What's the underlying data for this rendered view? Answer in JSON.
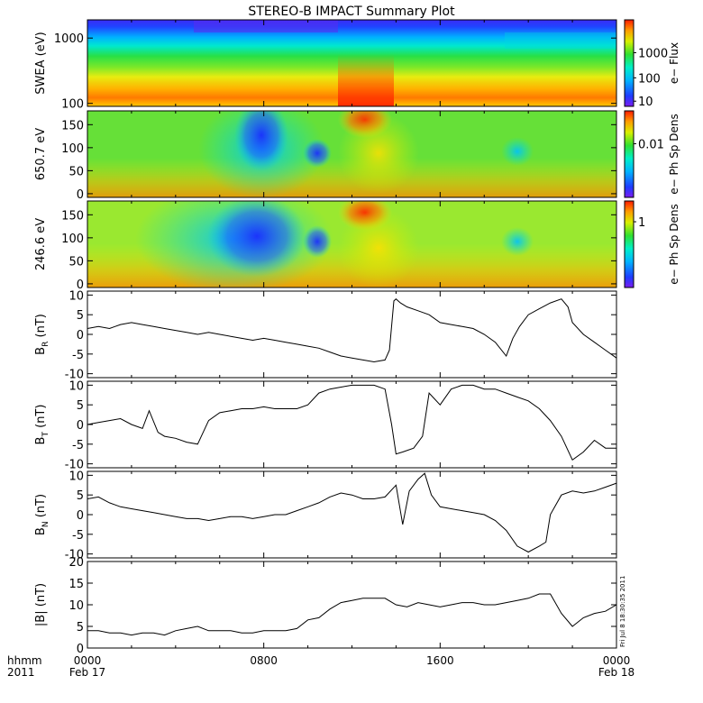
{
  "chart_data": {
    "type": "line",
    "title": "STEREO-B IMPACT Summary Plot",
    "time_axis": {
      "corner_top": "hhmm",
      "corner_bottom": "2011",
      "ticks": [
        {
          "t": 0,
          "label": "0000",
          "sublabel": "Feb 17"
        },
        {
          "t": 8,
          "label": "0800",
          "sublabel": ""
        },
        {
          "t": 16,
          "label": "1600",
          "sublabel": ""
        },
        {
          "t": 24,
          "label": "0000",
          "sublabel": "Feb 18"
        }
      ],
      "range_hours": [
        0,
        24
      ]
    },
    "spectrograms": [
      {
        "ylabel": "SWEA (eV)",
        "scale": "log",
        "ylim": [
          90,
          1900
        ],
        "ticks": [
          {
            "v": 100,
            "label": "100"
          },
          {
            "v": 1000,
            "label": "1000"
          }
        ],
        "colorbar_label": "e− Flux",
        "colorbar_ticks": [
          {
            "f": 0.06,
            "label": "10"
          },
          {
            "f": 0.33,
            "label": "100"
          },
          {
            "f": 0.62,
            "label": "1000"
          }
        ]
      },
      {
        "ylabel": "650.7 eV",
        "scale": "linear",
        "ylim": [
          -8,
          180
        ],
        "ticks": [
          {
            "v": 0,
            "label": "0"
          },
          {
            "v": 50,
            "label": "50"
          },
          {
            "v": 100,
            "label": "100"
          },
          {
            "v": 150,
            "label": "150"
          }
        ],
        "colorbar_label": "e− Ph Sp Dens",
        "colorbar_ticks": [
          {
            "f": 0.62,
            "label": "0.01"
          }
        ]
      },
      {
        "ylabel": "246.6 eV",
        "scale": "linear",
        "ylim": [
          -8,
          180
        ],
        "ticks": [
          {
            "v": 0,
            "label": "0"
          },
          {
            "v": 50,
            "label": "50"
          },
          {
            "v": 100,
            "label": "100"
          },
          {
            "v": 150,
            "label": "150"
          }
        ],
        "colorbar_label": "e− Ph Sp Dens",
        "colorbar_ticks": [
          {
            "f": 0.76,
            "label": "1"
          }
        ]
      }
    ],
    "series": [
      {
        "ylabel": "B",
        "ysub": "R",
        "yunit": " (nT)",
        "ylim": [
          -11,
          11
        ],
        "ticks": [
          -10,
          -5,
          0,
          5,
          10
        ],
        "x": [
          0,
          0.5,
          1.0,
          1.5,
          2.0,
          2.5,
          3.0,
          3.5,
          4.0,
          4.5,
          5.0,
          5.5,
          6.0,
          6.5,
          7.0,
          7.5,
          8.0,
          8.5,
          9.0,
          9.5,
          10.0,
          10.5,
          11.0,
          11.5,
          12.0,
          12.5,
          13.0,
          13.5,
          13.7,
          13.9,
          14.0,
          14.2,
          14.5,
          15.0,
          15.5,
          16.0,
          16.5,
          17.0,
          17.5,
          18.0,
          18.5,
          19.0,
          19.3,
          19.6,
          20.0,
          20.5,
          21.0,
          21.5,
          21.8,
          22.0,
          22.5,
          23.0,
          23.5,
          24.0
        ],
        "y": [
          1.5,
          2,
          1.5,
          2.5,
          3,
          2.5,
          2,
          1.5,
          1,
          0.5,
          0,
          0.5,
          0,
          -0.5,
          -1,
          -1.5,
          -1,
          -1.5,
          -2,
          -2.5,
          -3,
          -3.5,
          -4.5,
          -5.5,
          -6,
          -6.5,
          -7,
          -6.5,
          -4,
          8.5,
          9,
          8,
          7,
          6,
          5,
          3,
          2.5,
          2,
          1.5,
          0,
          -2,
          -5.5,
          -1,
          2,
          5,
          6.5,
          8,
          9,
          7,
          3,
          0,
          -2,
          -4,
          -6
        ]
      },
      {
        "ylabel": "B",
        "ysub": "T",
        "yunit": " (nT)",
        "ylim": [
          -11,
          11
        ],
        "ticks": [
          -10,
          -5,
          0,
          5,
          10
        ],
        "x": [
          0,
          0.5,
          1.0,
          1.5,
          2.0,
          2.5,
          2.8,
          3.2,
          3.5,
          4.0,
          4.5,
          5.0,
          5.5,
          6.0,
          6.5,
          7.0,
          7.5,
          8.0,
          8.5,
          9.0,
          9.5,
          10.0,
          10.5,
          11.0,
          11.5,
          12.0,
          12.5,
          13.0,
          13.5,
          13.8,
          14.0,
          14.3,
          14.8,
          15.2,
          15.5,
          16.0,
          16.5,
          17.0,
          17.5,
          18.0,
          18.5,
          19.0,
          19.5,
          20.0,
          20.5,
          21.0,
          21.5,
          22.0,
          22.5,
          23.0,
          23.5,
          24.0
        ],
        "y": [
          0,
          0.5,
          1,
          1.5,
          0,
          -1,
          3.5,
          -2,
          -3,
          -3.5,
          -4.5,
          -5,
          1,
          3,
          3.5,
          4,
          4,
          4.5,
          4,
          4,
          4,
          5,
          8,
          9,
          9.5,
          10,
          10,
          10,
          9,
          0,
          -7.5,
          -7,
          -6,
          -3,
          8,
          5,
          9,
          10,
          10,
          9,
          9,
          8,
          7,
          6,
          4,
          1,
          -3,
          -9,
          -7,
          -4,
          -6,
          -6
        ]
      },
      {
        "ylabel": "B",
        "ysub": "N",
        "yunit": " (nT)",
        "ylim": [
          -11,
          11
        ],
        "ticks": [
          -10,
          -5,
          0,
          5,
          10
        ],
        "x": [
          0,
          0.5,
          1.0,
          1.5,
          2.0,
          2.5,
          3.0,
          3.5,
          4.0,
          4.5,
          5.0,
          5.5,
          6.0,
          6.5,
          7.0,
          7.5,
          8.0,
          8.5,
          9.0,
          9.5,
          10.0,
          10.5,
          11.0,
          11.5,
          12.0,
          12.5,
          13.0,
          13.5,
          14.0,
          14.3,
          14.6,
          15.0,
          15.3,
          15.6,
          16.0,
          16.5,
          17.0,
          17.5,
          18.0,
          18.5,
          19.0,
          19.5,
          20.0,
          20.5,
          20.8,
          21.0,
          21.5,
          22.0,
          22.5,
          23.0,
          23.5,
          24.0
        ],
        "y": [
          4,
          4.5,
          3,
          2,
          1.5,
          1,
          0.5,
          0,
          -0.5,
          -1,
          -1,
          -1.5,
          -1,
          -0.5,
          -0.5,
          -1,
          -0.5,
          0,
          0,
          1,
          2,
          3,
          4.5,
          5.5,
          5,
          4,
          4,
          4.5,
          7.5,
          -2.5,
          6,
          9,
          10.5,
          5,
          2,
          1.5,
          1,
          0.5,
          0,
          -1.5,
          -4,
          -8,
          -9.5,
          -8,
          -7,
          0,
          5,
          6,
          5.5,
          6,
          7,
          8
        ]
      },
      {
        "ylabel": "|B|",
        "ysub": "",
        "yunit": " (nT)",
        "ylim": [
          0,
          20
        ],
        "ticks": [
          0,
          5,
          10,
          15,
          20
        ],
        "x": [
          0,
          0.5,
          1.0,
          1.5,
          2.0,
          2.5,
          3.0,
          3.5,
          4.0,
          4.5,
          5.0,
          5.5,
          6.0,
          6.5,
          7.0,
          7.5,
          8.0,
          8.5,
          9.0,
          9.5,
          10.0,
          10.5,
          11.0,
          11.5,
          12.0,
          12.5,
          13.0,
          13.5,
          14.0,
          14.5,
          15.0,
          15.5,
          16.0,
          16.5,
          17.0,
          17.5,
          18.0,
          18.5,
          19.0,
          19.5,
          20.0,
          20.5,
          21.0,
          21.5,
          22.0,
          22.5,
          23.0,
          23.5,
          24.0
        ],
        "y": [
          4,
          4,
          3.5,
          3.5,
          3,
          3.5,
          3.5,
          3,
          4,
          4.5,
          5,
          4,
          4,
          4,
          3.5,
          3.5,
          4,
          4,
          4,
          4.5,
          6.5,
          7,
          9,
          10.5,
          11,
          11.5,
          11.5,
          11.5,
          10,
          9.5,
          10.5,
          10,
          9.5,
          10,
          10.5,
          10.5,
          10,
          10,
          10.5,
          11,
          11.5,
          12.5,
          12.5,
          8,
          5,
          7,
          8,
          8.5,
          10
        ]
      }
    ],
    "timestamp": "Fri Jul  8 18:30:35 2011"
  }
}
